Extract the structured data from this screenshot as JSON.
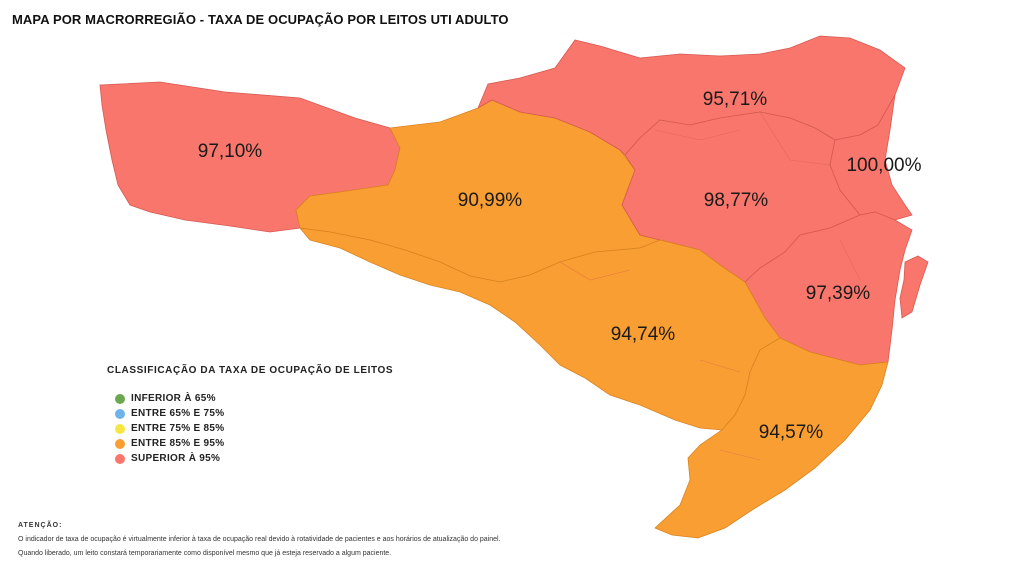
{
  "title": "MAPA POR MACRORREGIÃO - TAXA DE OCUPAÇÃO POR LEITOS UTI ADULTO",
  "colors": {
    "superior_95": "#f8766c",
    "entre_85_95": "#f99e32",
    "region_border": "#d65a52",
    "region_border_orange": "#d98420"
  },
  "regions": [
    {
      "id": "grande-oeste",
      "value": "97,10%",
      "class": "superior_95"
    },
    {
      "id": "meio-oeste-serra",
      "value": "90,99%",
      "class": "entre_85_95"
    },
    {
      "id": "planalto-norte-nordeste",
      "value": "95,71%",
      "class": "superior_95"
    },
    {
      "id": "vale-itajai",
      "value": "98,77%",
      "class": "superior_95"
    },
    {
      "id": "foz-itajai",
      "value": "100,00%",
      "class": "superior_95"
    },
    {
      "id": "grande-florianopolis",
      "value": "97,39%",
      "class": "superior_95"
    },
    {
      "id": "serra-catarinense",
      "value": "94,74%",
      "class": "entre_85_95"
    },
    {
      "id": "sul",
      "value": "94,57%",
      "class": "entre_85_95"
    }
  ],
  "legend": {
    "title": "CLASSIFICAÇÃO DA TAXA DE OCUPAÇÃO DE LEITOS",
    "items": [
      {
        "label": "INFERIOR À 65%",
        "color": "#6aa84f"
      },
      {
        "label": "ENTRE 65% E 75%",
        "color": "#6fb3e8"
      },
      {
        "label": "ENTRE 75% E 85%",
        "color": "#f5e642"
      },
      {
        "label": "ENTRE 85% E 95%",
        "color": "#f99e32"
      },
      {
        "label": "SUPERIOR À 95%",
        "color": "#f8766c"
      }
    ]
  },
  "notice": {
    "title": "ATENÇÃO:",
    "line1": "O indicador de taxa de ocupação é virtualmente inferior à taxa de ocupação real devido à rotatividade de pacientes e aos horários de atualização do painel.",
    "line2": "Quando liberado, um leito constará temporariamente como disponível mesmo que já esteja reservado a algum paciente."
  }
}
